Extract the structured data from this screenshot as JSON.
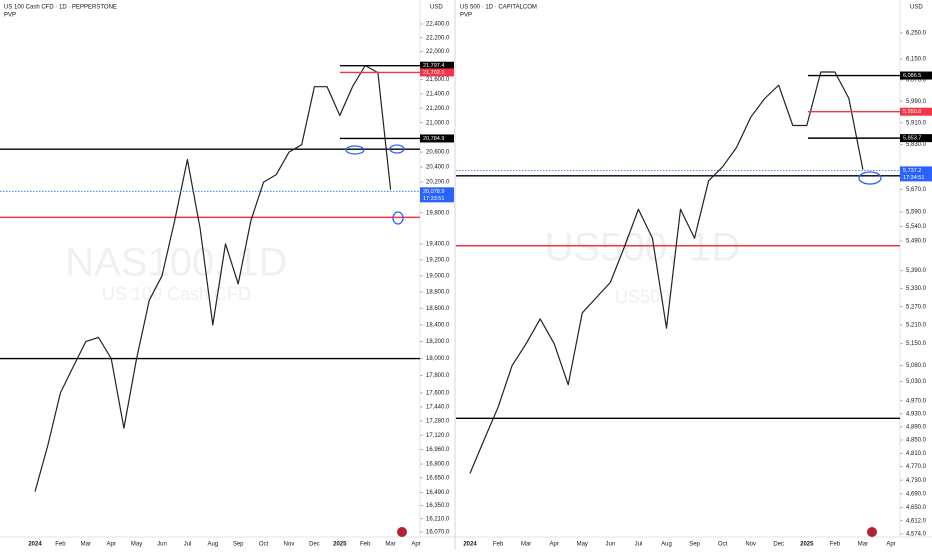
{
  "chart_data": [
    {
      "type": "line",
      "title": "US 100 Cash CFD · 1D · PEPPERSTONE",
      "subtitle": "PVP",
      "currency": "USD",
      "watermark": "NAS100, 1D",
      "watermark_sub": "US 100 Cash CFD",
      "categories": [
        "2024",
        null,
        "Feb",
        null,
        "Mar",
        null,
        "Apr",
        null,
        "May",
        null,
        "Jun",
        null,
        "Jul",
        null,
        "Aug",
        null,
        "Sep",
        null,
        "Oct",
        null,
        "Nov",
        null,
        "Dec",
        null,
        "2025",
        null,
        "Feb",
        null,
        "Mar",
        null,
        "Apr"
      ],
      "values": [
        16500,
        17000,
        17600,
        17900,
        18200,
        18250,
        18000,
        17200,
        18000,
        18700,
        19000,
        19700,
        20500,
        19600,
        18400,
        19400,
        18900,
        19700,
        20200,
        20300,
        20600,
        20700,
        21500,
        21500,
        21100,
        21500,
        21800,
        21700,
        20100,
        null,
        null
      ],
      "color": "#222222",
      "log_scale": true,
      "ylim": [
        16070,
        22400
      ],
      "yticks": [
        {
          "value": 22400,
          "label": "22,400.0"
        },
        {
          "value": 22200,
          "label": "22,200.0"
        },
        {
          "value": 22000,
          "label": "22,000.0"
        },
        {
          "value": 21800,
          "label": "21,800.0"
        },
        {
          "value": 21600,
          "label": "21,600.0"
        },
        {
          "value": 21400,
          "label": "21,400.0"
        },
        {
          "value": 21200,
          "label": "21,200.0"
        },
        {
          "value": 21000,
          "label": "21,000.0"
        },
        {
          "value": 20800,
          "label": "20,800.0"
        },
        {
          "value": 20600,
          "label": "20,600.0"
        },
        {
          "value": 20400,
          "label": "20,400.0"
        },
        {
          "value": 20200,
          "label": "20,200.0"
        },
        {
          "value": 19800,
          "label": "19,800.0"
        },
        {
          "value": 19400,
          "label": "19,400.0"
        },
        {
          "value": 19200,
          "label": "19,200.0"
        },
        {
          "value": 19000,
          "label": "19,000.0"
        },
        {
          "value": 18800,
          "label": "18,800.0"
        },
        {
          "value": 18600,
          "label": "18,600.0"
        },
        {
          "value": 18400,
          "label": "18,400.0"
        },
        {
          "value": 18200,
          "label": "18,200.0"
        },
        {
          "value": 18000,
          "label": "18,000.0"
        },
        {
          "value": 17800,
          "label": "17,800.0"
        },
        {
          "value": 17600,
          "label": "17,600.0"
        },
        {
          "value": 17440,
          "label": "17,440.0"
        },
        {
          "value": 17280,
          "label": "17,280.0"
        },
        {
          "value": 17120,
          "label": "17,120.0"
        },
        {
          "value": 16960,
          "label": "16,960.0"
        },
        {
          "value": 16800,
          "label": "16,800.0"
        },
        {
          "value": 16650,
          "label": "16,650.0"
        },
        {
          "value": 16490,
          "label": "16,490.0"
        },
        {
          "value": 16350,
          "label": "16,350.0"
        },
        {
          "value": 16210,
          "label": "16,210.0"
        },
        {
          "value": 16070,
          "label": "16,070.0"
        }
      ],
      "levels": [
        {
          "value": 20640,
          "color": "#000000"
        },
        {
          "value": 19740,
          "color": "#f23645"
        },
        {
          "value": 18000,
          "color": "#000000"
        }
      ],
      "price_labels": [
        {
          "value": 21797.4,
          "label": "21,797.4",
          "color": "#000000"
        },
        {
          "value": 21702.1,
          "label": "21,702.1",
          "color": "#f23645"
        },
        {
          "value": 20784.9,
          "label": "20,784.9",
          "color": "#000000"
        }
      ],
      "last_price": {
        "value": 20078.9,
        "label": "20,078.9",
        "countdown": "17:33:51",
        "color": "#2962ff"
      }
    },
    {
      "type": "line",
      "title": "US 500 · 1D · CAPITALCOM",
      "subtitle": "PVP",
      "currency": "USD",
      "watermark": "US500, 1D",
      "watermark_sub": "US500",
      "categories": [
        "2024",
        null,
        "Feb",
        null,
        "Mar",
        null,
        "Apr",
        null,
        "May",
        null,
        "Jun",
        null,
        "Jul",
        null,
        "Aug",
        null,
        "Sep",
        null,
        "Oct",
        null,
        "Nov",
        null,
        "Dec",
        null,
        "2025",
        null,
        "Feb",
        null,
        "Mar",
        null,
        "Apr"
      ],
      "values": [
        4750,
        4850,
        4950,
        5080,
        5150,
        5230,
        5150,
        5020,
        5250,
        5300,
        5350,
        5470,
        5600,
        5500,
        5200,
        5600,
        5500,
        5700,
        5750,
        5820,
        5930,
        6000,
        6050,
        5900,
        5900,
        6100,
        6100,
        6000,
        5740,
        null,
        null
      ],
      "color": "#222222",
      "log_scale": true,
      "ylim": [
        4574,
        6250
      ],
      "yticks": [
        {
          "value": 6250,
          "label": "6,250.0"
        },
        {
          "value": 6150,
          "label": "6,150.0"
        },
        {
          "value": 6070,
          "label": "6,070.0"
        },
        {
          "value": 5990,
          "label": "5,990.0"
        },
        {
          "value": 5910,
          "label": "5,910.0"
        },
        {
          "value": 5830,
          "label": "5,830.0"
        },
        {
          "value": 5670,
          "label": "5,670.0"
        },
        {
          "value": 5590,
          "label": "5,590.0"
        },
        {
          "value": 5540,
          "label": "5,540.0"
        },
        {
          "value": 5490,
          "label": "5,490.0"
        },
        {
          "value": 5390,
          "label": "5,390.0"
        },
        {
          "value": 5330,
          "label": "5,330.0"
        },
        {
          "value": 5270,
          "label": "5,270.0"
        },
        {
          "value": 5210,
          "label": "5,210.0"
        },
        {
          "value": 5150,
          "label": "5,150.0"
        },
        {
          "value": 5080,
          "label": "5,080.0"
        },
        {
          "value": 5030,
          "label": "5,030.0"
        },
        {
          "value": 4970,
          "label": "4,970.0"
        },
        {
          "value": 4930,
          "label": "4,930.0"
        },
        {
          "value": 4890,
          "label": "4,890.0"
        },
        {
          "value": 4850,
          "label": "4,850.0"
        },
        {
          "value": 4810,
          "label": "4,810.0"
        },
        {
          "value": 4770,
          "label": "4,770.0"
        },
        {
          "value": 4730,
          "label": "4,730.0"
        },
        {
          "value": 4690,
          "label": "4,690.0"
        },
        {
          "value": 4650,
          "label": "4,650.0"
        },
        {
          "value": 4612,
          "label": "4,612.0"
        },
        {
          "value": 4574,
          "label": "4,574.0"
        }
      ],
      "levels": [
        {
          "value": 5718,
          "color": "#000000"
        },
        {
          "value": 5474,
          "color": "#f23645"
        },
        {
          "value": 4916,
          "color": "#000000"
        }
      ],
      "price_labels": [
        {
          "value": 6086.5,
          "label": "6,086.5",
          "color": "#000000"
        },
        {
          "value": 5950.8,
          "label": "5,950.8",
          "color": "#f23645"
        },
        {
          "value": 5853.7,
          "label": "5,853.7",
          "color": "#000000"
        }
      ],
      "last_price": {
        "value": 5737.2,
        "label": "5,737.2",
        "countdown": "17:34:51",
        "color": "#2962ff"
      }
    }
  ]
}
